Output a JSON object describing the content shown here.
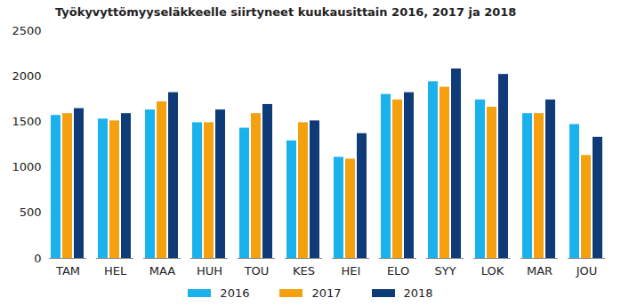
{
  "chart_data": {
    "type": "bar",
    "title": "Työkyvyttömyyseläkkeelle siirtyneet kuukausittain 2016, 2017 ja 2018",
    "categories": [
      "TAM",
      "HEL",
      "MAA",
      "HUH",
      "TOU",
      "KES",
      "HEI",
      "ELO",
      "SYY",
      "LOK",
      "MAR",
      "JOU"
    ],
    "series": [
      {
        "name": "2016",
        "color": "#1ab2ed",
        "values": [
          1570,
          1530,
          1630,
          1490,
          1430,
          1290,
          1110,
          1800,
          1940,
          1740,
          1590,
          1470
        ]
      },
      {
        "name": "2017",
        "color": "#f5a00f",
        "values": [
          1590,
          1510,
          1720,
          1490,
          1590,
          1490,
          1090,
          1740,
          1880,
          1660,
          1590,
          1130
        ]
      },
      {
        "name": "2018",
        "color": "#0f3c78",
        "values": [
          1645,
          1590,
          1820,
          1630,
          1690,
          1510,
          1370,
          1820,
          2080,
          2020,
          1740,
          1330
        ]
      }
    ],
    "ylim": [
      0,
      2500
    ],
    "yticks": [
      0,
      500,
      1000,
      1500,
      2000,
      2500
    ],
    "grid": false,
    "legend": "bottom"
  }
}
